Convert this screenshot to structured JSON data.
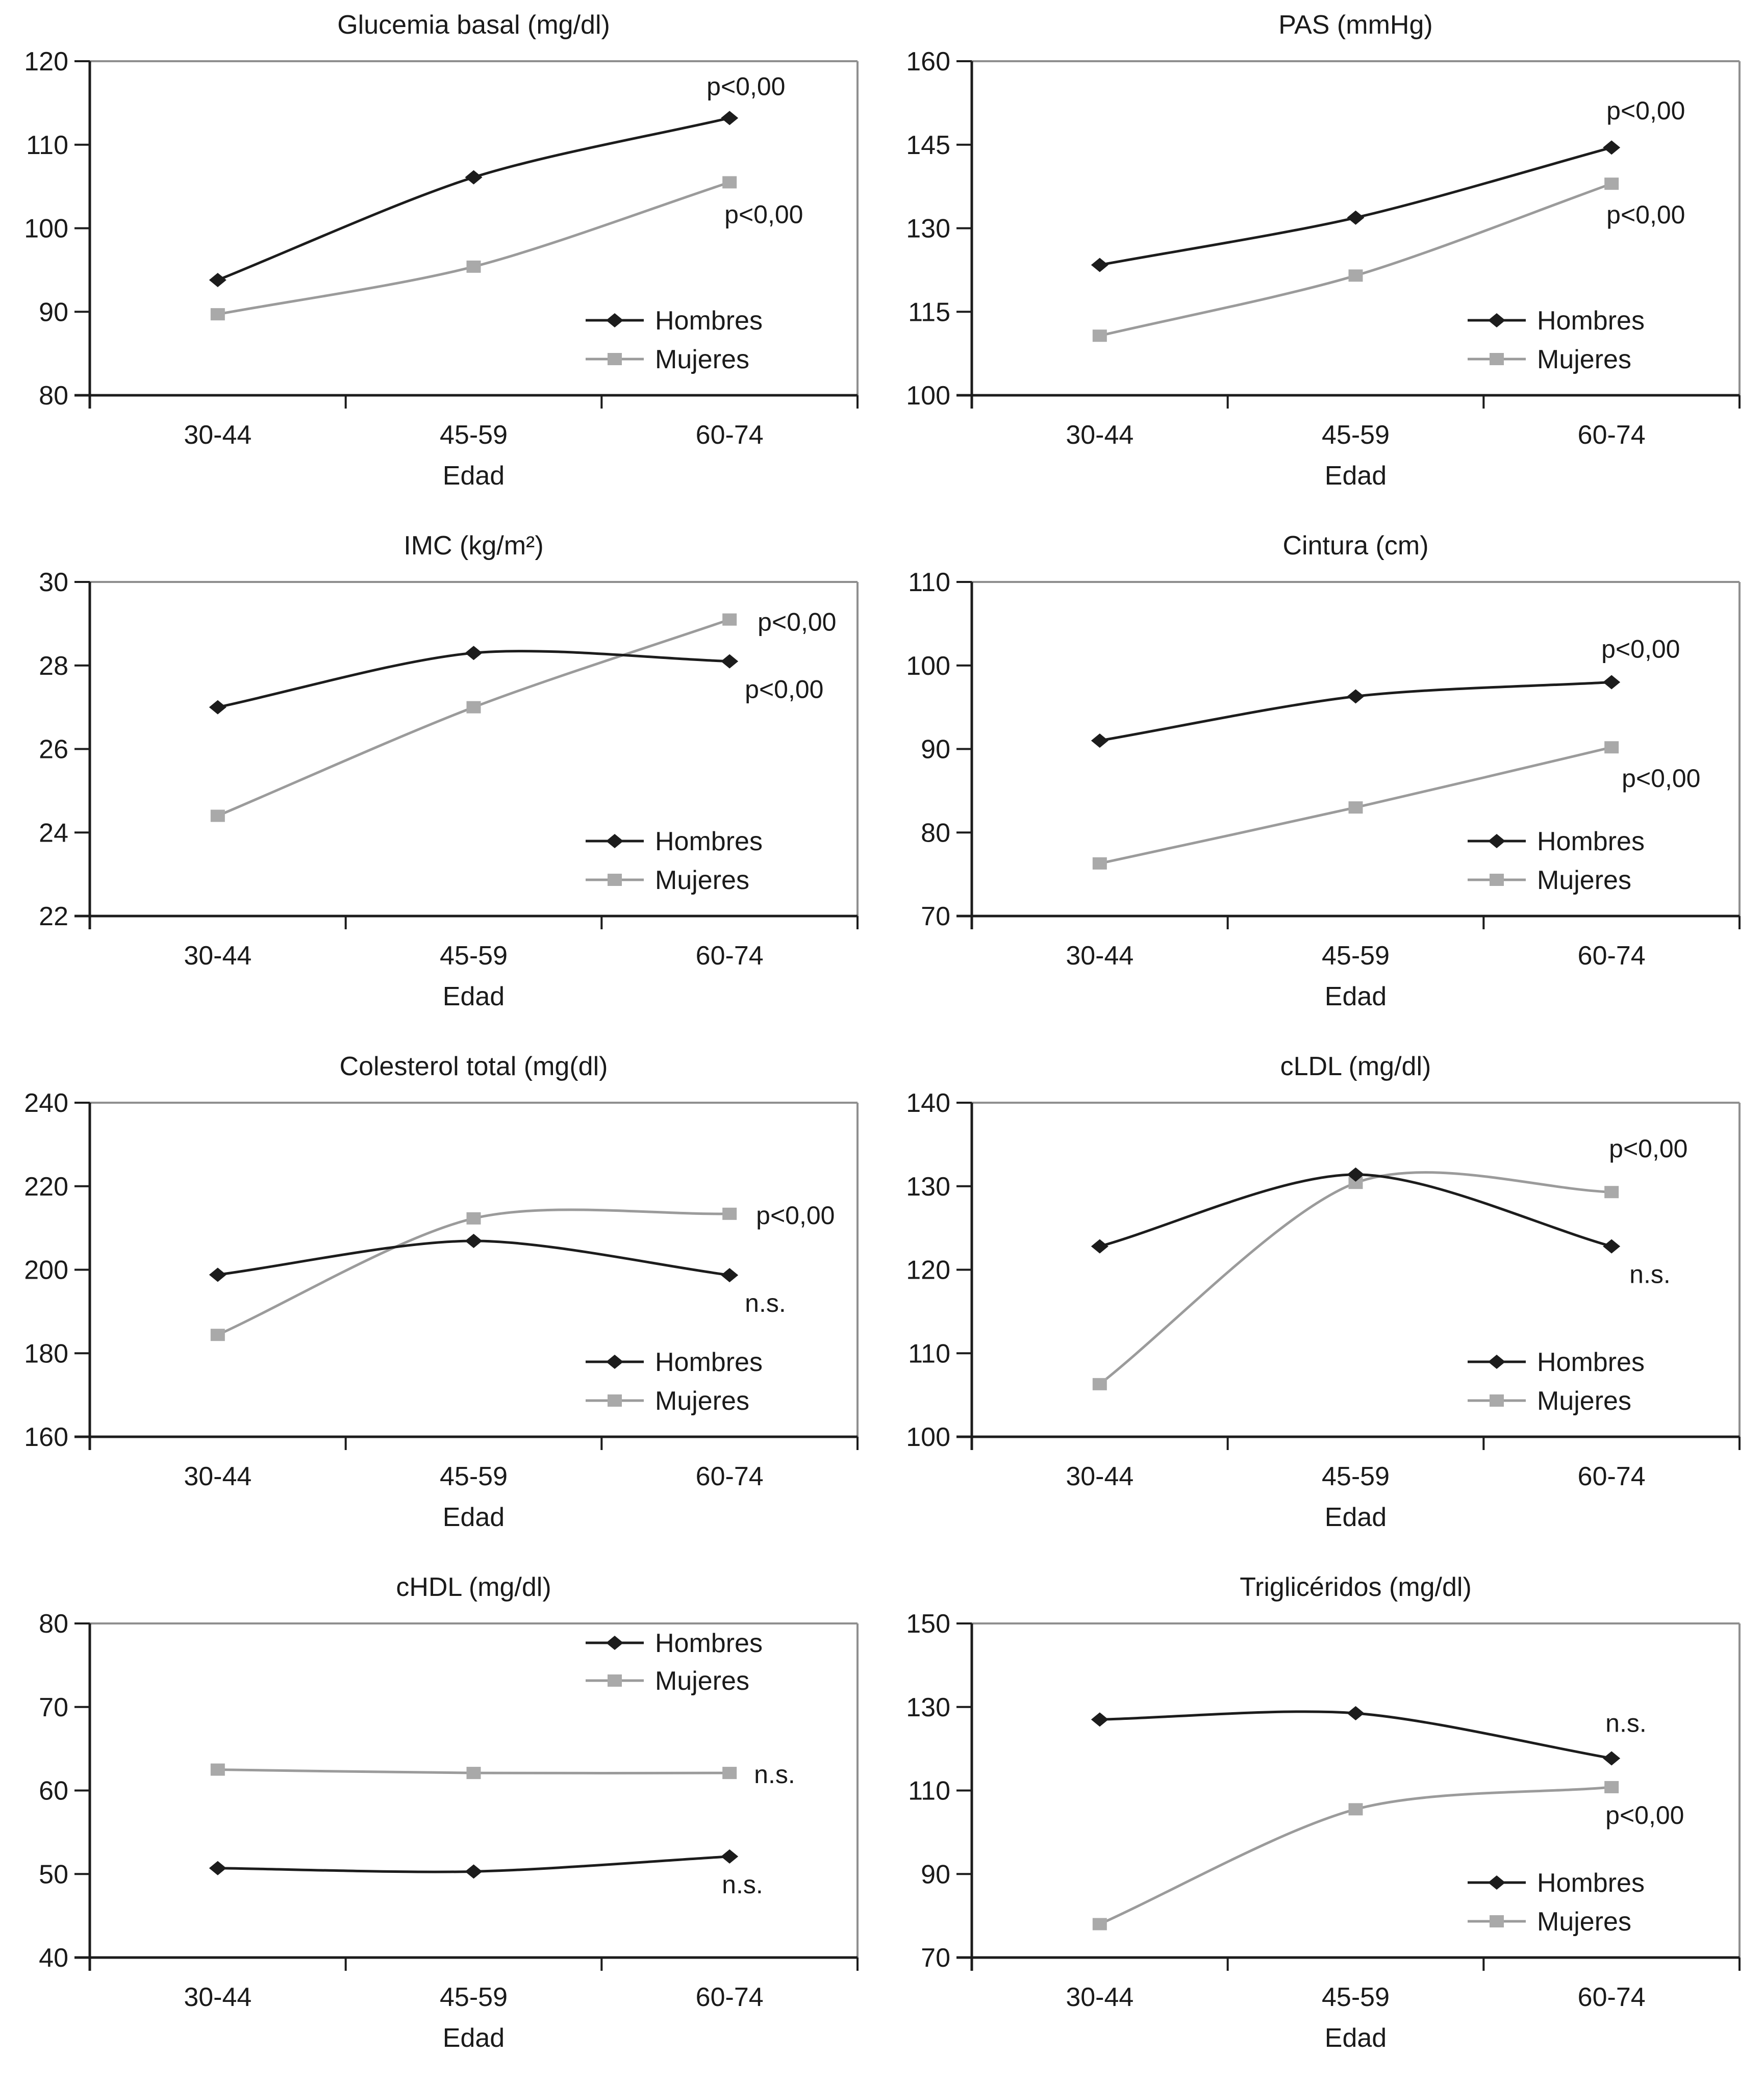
{
  "page": {
    "background": "#ffffff"
  },
  "colors": {
    "hombres_line": "#1c1c1c",
    "hombres_marker": "#1c1c1c",
    "mujeres_line": "#9b9b9b",
    "mujeres_marker": "#a9a9a9",
    "frame_gray": "#8f8f8f",
    "axis_black": "#1c1c1c",
    "text": "#1a1a1a"
  },
  "x_axis": {
    "label": "Edad",
    "categories": [
      "30-44",
      "45-59",
      "60-74"
    ]
  },
  "legend": {
    "hombres_label": "Hombres",
    "mujeres_label": "Mujeres"
  },
  "chart_data": [
    {
      "id": "glucemia",
      "type": "line",
      "title": "Glucemia basal (mg/dl)",
      "xlabel": "Edad",
      "categories": [
        "30-44",
        "45-59",
        "60-74"
      ],
      "ylim": [
        80,
        120
      ],
      "yticks": [
        80,
        90,
        100,
        110,
        120
      ],
      "grid": false,
      "legend_position": "bottom-right",
      "series": [
        {
          "name": "Hombres",
          "key": "hombres",
          "values": [
            93.8,
            106.1,
            113.2
          ],
          "annotation": {
            "text": "p<0,00",
            "dx": -45,
            "dy": -45
          }
        },
        {
          "name": "Mujeres",
          "key": "mujeres",
          "values": [
            89.7,
            95.4,
            105.5
          ],
          "annotation": {
            "text": "p<0,00",
            "dx": -10,
            "dy": 80
          }
        }
      ]
    },
    {
      "id": "pas",
      "type": "line",
      "title": "PAS (mmHg)",
      "xlabel": "Edad",
      "categories": [
        "30-44",
        "45-59",
        "60-74"
      ],
      "ylim": [
        100,
        160
      ],
      "yticks": [
        100,
        115,
        130,
        145,
        160
      ],
      "grid": false,
      "legend_position": "bottom-right",
      "series": [
        {
          "name": "Hombres",
          "key": "hombres",
          "values": [
            123.4,
            131.9,
            144.5
          ],
          "annotation": {
            "text": "p<0,00",
            "dx": -10,
            "dy": -55
          }
        },
        {
          "name": "Mujeres",
          "key": "mujeres",
          "values": [
            110.7,
            121.5,
            138.0
          ],
          "annotation": {
            "text": "p<0,00",
            "dx": -10,
            "dy": 78
          }
        }
      ]
    },
    {
      "id": "imc",
      "type": "line",
      "title": "IMC (kg/m²)",
      "xlabel": "Edad",
      "categories": [
        "30-44",
        "45-59",
        "60-74"
      ],
      "ylim": [
        22,
        30
      ],
      "yticks": [
        22,
        24,
        26,
        28,
        30
      ],
      "grid": false,
      "legend_position": "bottom-right",
      "series": [
        {
          "name": "Hombres",
          "key": "hombres",
          "values": [
            27.0,
            28.3,
            28.1
          ],
          "annotation": {
            "text": "p<0,00",
            "dx": 30,
            "dy": 72
          }
        },
        {
          "name": "Mujeres",
          "key": "mujeres",
          "values": [
            24.4,
            27.0,
            29.1
          ],
          "annotation": {
            "text": "p<0,00",
            "dx": 55,
            "dy": 22
          }
        }
      ]
    },
    {
      "id": "cintura",
      "type": "line",
      "title": "Cintura (cm)",
      "xlabel": "Edad",
      "categories": [
        "30-44",
        "45-59",
        "60-74"
      ],
      "ylim": [
        70,
        110
      ],
      "yticks": [
        70,
        80,
        90,
        100,
        110
      ],
      "grid": false,
      "legend_position": "bottom-right",
      "series": [
        {
          "name": "Hombres",
          "key": "hombres",
          "values": [
            91.0,
            96.3,
            98.0
          ],
          "annotation": {
            "text": "p<0,00",
            "dx": -20,
            "dy": -48
          }
        },
        {
          "name": "Mujeres",
          "key": "mujeres",
          "values": [
            76.3,
            83.0,
            90.2
          ],
          "annotation": {
            "text": "p<0,00",
            "dx": 20,
            "dy": 78
          }
        }
      ]
    },
    {
      "id": "colesterol",
      "type": "line",
      "title": "Colesterol total (mg(dl)",
      "xlabel": "Edad",
      "categories": [
        "30-44",
        "45-59",
        "60-74"
      ],
      "ylim": [
        160,
        240
      ],
      "yticks": [
        160,
        180,
        200,
        220,
        240
      ],
      "grid": false,
      "legend_position": "bottom-right",
      "series": [
        {
          "name": "Hombres",
          "key": "hombres",
          "values": [
            198.8,
            206.9,
            198.7
          ],
          "annotation": {
            "text": "n.s.",
            "dx": 30,
            "dy": 72
          }
        },
        {
          "name": "Mujeres",
          "key": "mujeres",
          "values": [
            184.4,
            212.3,
            213.4
          ],
          "annotation": {
            "text": "p<0,00",
            "dx": 52,
            "dy": 20
          }
        }
      ]
    },
    {
      "id": "cldl",
      "type": "line",
      "title": "cLDL (mg/dl)",
      "xlabel": "Edad",
      "categories": [
        "30-44",
        "45-59",
        "60-74"
      ],
      "ylim": [
        100,
        140
      ],
      "yticks": [
        100,
        110,
        120,
        130,
        140
      ],
      "grid": false,
      "legend_position": "bottom-right",
      "series": [
        {
          "name": "Hombres",
          "key": "hombres",
          "values": [
            122.8,
            131.4,
            122.8
          ],
          "annotation": {
            "text": "n.s.",
            "dx": 35,
            "dy": 72
          }
        },
        {
          "name": "Mujeres",
          "key": "mujeres",
          "values": [
            106.3,
            130.4,
            129.3
          ],
          "annotation": {
            "text": "p<0,00",
            "dx": -5,
            "dy": -68
          }
        }
      ]
    },
    {
      "id": "chdl",
      "type": "line",
      "title": "cHDL (mg/dl)",
      "xlabel": "Edad",
      "categories": [
        "30-44",
        "45-59",
        "60-74"
      ],
      "ylim": [
        40,
        80
      ],
      "yticks": [
        40,
        50,
        60,
        70,
        80
      ],
      "grid": false,
      "legend_position": "top-right",
      "series": [
        {
          "name": "Hombres",
          "key": "hombres",
          "values": [
            50.7,
            50.3,
            52.1
          ],
          "annotation": {
            "text": "n.s.",
            "dx": -15,
            "dy": 72
          }
        },
        {
          "name": "Mujeres",
          "key": "mujeres",
          "values": [
            62.5,
            62.1,
            62.1
          ],
          "annotation": {
            "text": "n.s.",
            "dx": 48,
            "dy": 20
          }
        }
      ]
    },
    {
      "id": "trigliceridos",
      "type": "line",
      "title": "Triglicéridos (mg/dl)",
      "xlabel": "Edad",
      "categories": [
        "30-44",
        "45-59",
        "60-74"
      ],
      "ylim": [
        70,
        150
      ],
      "yticks": [
        70,
        90,
        110,
        130,
        150
      ],
      "grid": false,
      "legend_position": "bottom-right",
      "series": [
        {
          "name": "Hombres",
          "key": "hombres",
          "values": [
            127.0,
            128.5,
            117.7
          ],
          "annotation": {
            "text": "n.s.",
            "dx": -12,
            "dy": -52
          }
        },
        {
          "name": "Mujeres",
          "key": "mujeres",
          "values": [
            78.0,
            105.5,
            110.8
          ],
          "annotation": {
            "text": "p<0,00",
            "dx": -12,
            "dy": 72
          }
        }
      ]
    }
  ]
}
